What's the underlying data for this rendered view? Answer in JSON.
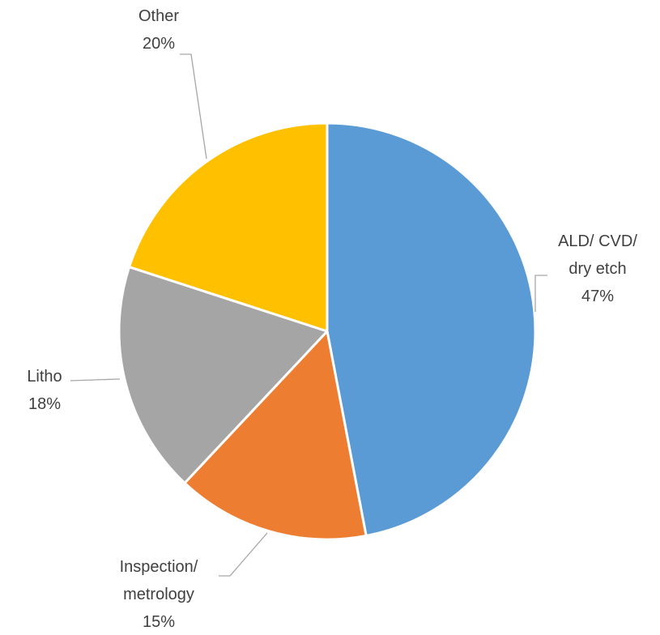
{
  "chart_data": {
    "type": "pie",
    "categories": [
      "ALD/ CVD/ dry etch",
      "Inspection/ metrology",
      "Litho",
      "Other"
    ],
    "values": [
      47,
      15,
      18,
      20
    ],
    "value_labels": [
      "47%",
      "15%",
      "18%",
      "20%"
    ],
    "colors": [
      "#5b9bd5",
      "#ed7d31",
      "#a5a5a5",
      "#ffc000"
    ]
  }
}
